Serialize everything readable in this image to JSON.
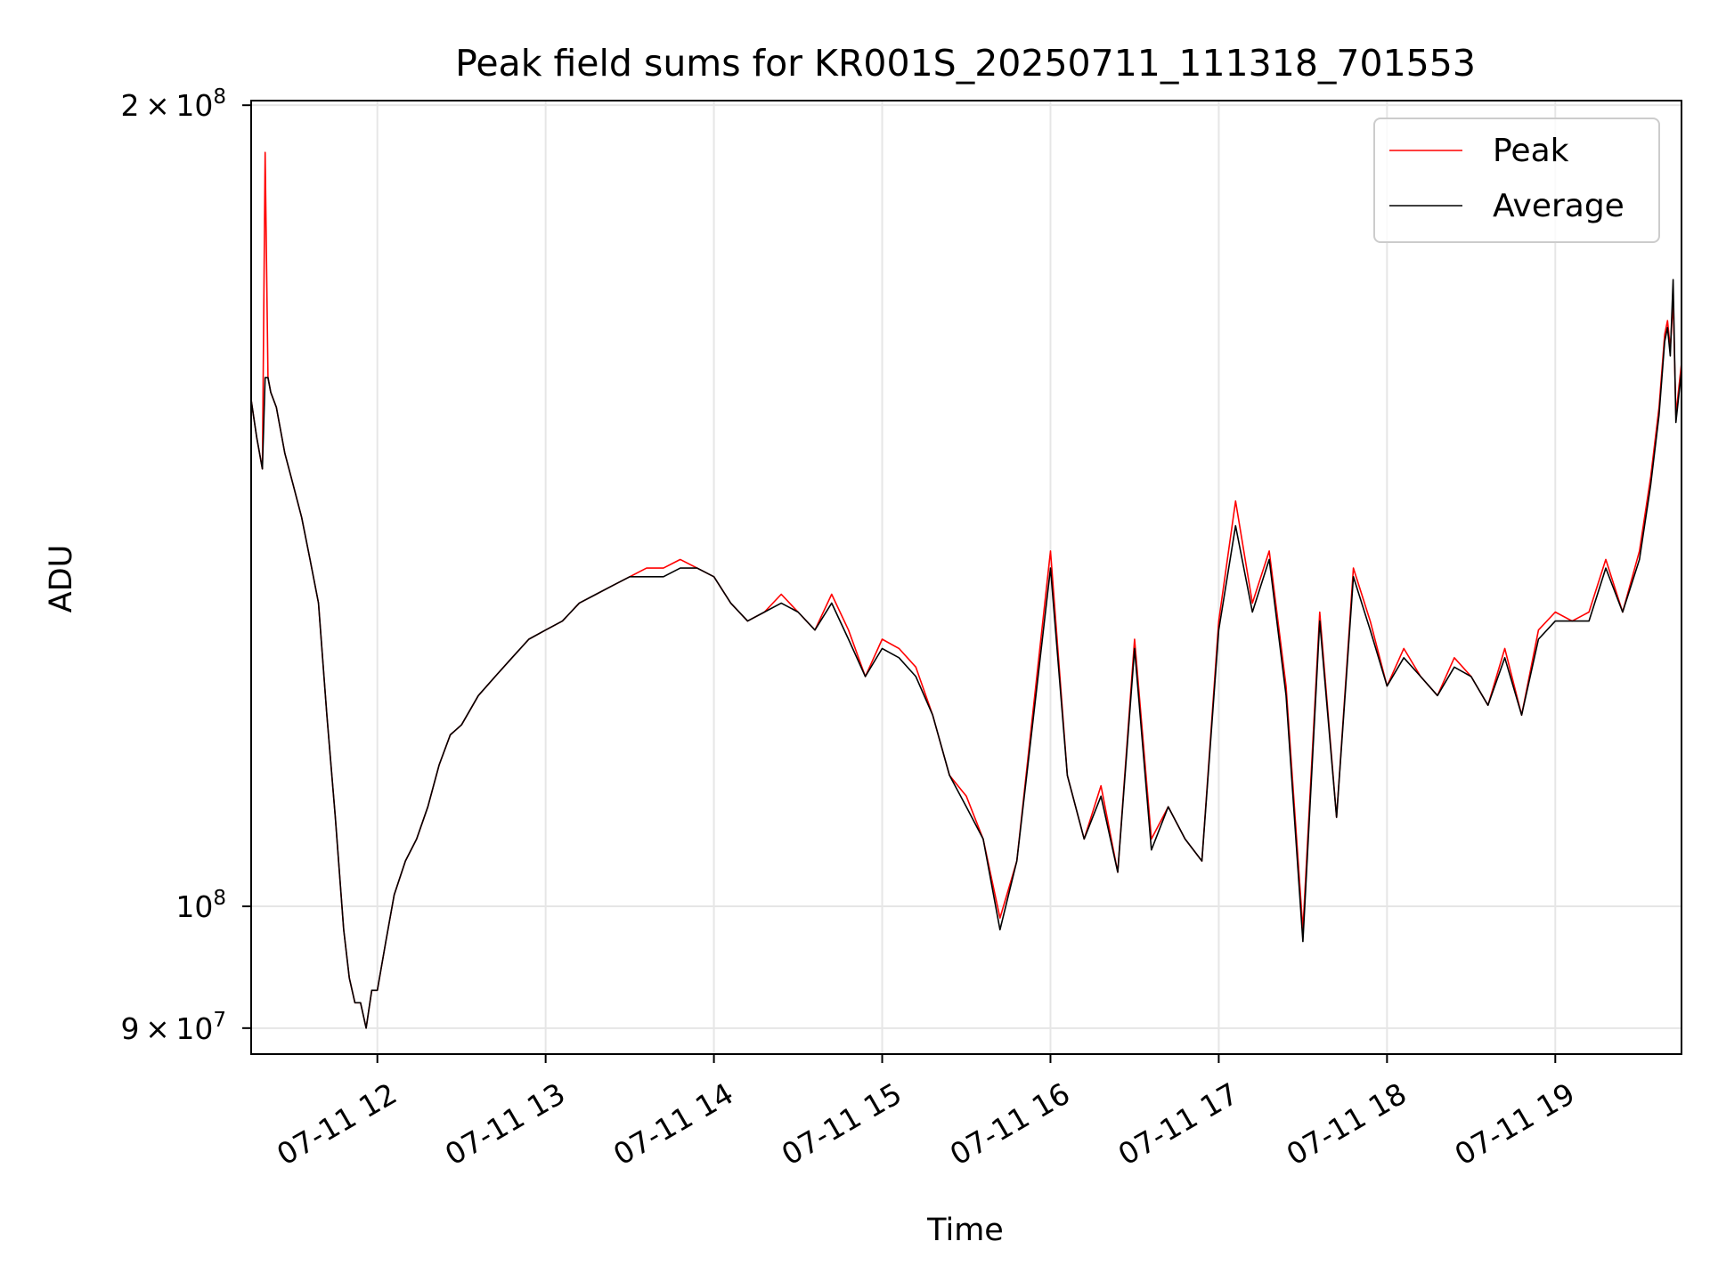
{
  "chart_data": {
    "type": "line",
    "title": "Peak field sums for KR001S_20250711_111318_701553",
    "xlabel": "Time",
    "ylabel": "ADU",
    "x_range": [
      "2025-07-11T11:15",
      "2025-07-11T19:45"
    ],
    "y_range": [
      88000000,
      200800000
    ],
    "y_scale": "log",
    "grid": true,
    "legend_position": "top-right",
    "x_ticks": [
      {
        "value": "2025-07-11T12:00",
        "label": "07-11 12"
      },
      {
        "value": "2025-07-11T13:00",
        "label": "07-11 13"
      },
      {
        "value": "2025-07-11T14:00",
        "label": "07-11 14"
      },
      {
        "value": "2025-07-11T15:00",
        "label": "07-11 15"
      },
      {
        "value": "2025-07-11T16:00",
        "label": "07-11 16"
      },
      {
        "value": "2025-07-11T17:00",
        "label": "07-11 17"
      },
      {
        "value": "2025-07-11T18:00",
        "label": "07-11 18"
      },
      {
        "value": "2025-07-11T19:00",
        "label": "07-11 19"
      }
    ],
    "y_ticks": [
      {
        "value": 90000000,
        "base": "9 × 10",
        "exp": "7"
      },
      {
        "value": 100000000,
        "base": "10",
        "exp": "8"
      },
      {
        "value": 200000000,
        "base": "2 × 10",
        "exp": "8"
      }
    ],
    "series": [
      {
        "name": "Peak",
        "color": "#ff0000"
      },
      {
        "name": "Average",
        "color": "#000000"
      }
    ],
    "x": [
      "2025-07-11T11:15",
      "2025-07-11T11:17",
      "2025-07-11T11:19",
      "2025-07-11T11:20",
      "2025-07-11T11:21",
      "2025-07-11T11:22",
      "2025-07-11T11:24",
      "2025-07-11T11:27",
      "2025-07-11T11:30",
      "2025-07-11T11:33",
      "2025-07-11T11:36",
      "2025-07-11T11:39",
      "2025-07-11T11:42",
      "2025-07-11T11:45",
      "2025-07-11T11:48",
      "2025-07-11T11:50",
      "2025-07-11T11:52",
      "2025-07-11T11:54",
      "2025-07-11T11:56",
      "2025-07-11T11:58",
      "2025-07-11T12:00",
      "2025-07-11T12:03",
      "2025-07-11T12:06",
      "2025-07-11T12:10",
      "2025-07-11T12:14",
      "2025-07-11T12:18",
      "2025-07-11T12:22",
      "2025-07-11T12:26",
      "2025-07-11T12:30",
      "2025-07-11T12:36",
      "2025-07-11T12:42",
      "2025-07-11T12:48",
      "2025-07-11T12:54",
      "2025-07-11T13:00",
      "2025-07-11T13:06",
      "2025-07-11T13:12",
      "2025-07-11T13:18",
      "2025-07-11T13:24",
      "2025-07-11T13:30",
      "2025-07-11T13:36",
      "2025-07-11T13:42",
      "2025-07-11T13:48",
      "2025-07-11T13:54",
      "2025-07-11T14:00",
      "2025-07-11T14:06",
      "2025-07-11T14:12",
      "2025-07-11T14:18",
      "2025-07-11T14:24",
      "2025-07-11T14:30",
      "2025-07-11T14:36",
      "2025-07-11T14:42",
      "2025-07-11T14:48",
      "2025-07-11T14:54",
      "2025-07-11T15:00",
      "2025-07-11T15:06",
      "2025-07-11T15:12",
      "2025-07-11T15:18",
      "2025-07-11T15:24",
      "2025-07-11T15:30",
      "2025-07-11T15:36",
      "2025-07-11T15:42",
      "2025-07-11T15:48",
      "2025-07-11T15:54",
      "2025-07-11T16:00",
      "2025-07-11T16:06",
      "2025-07-11T16:12",
      "2025-07-11T16:18",
      "2025-07-11T16:24",
      "2025-07-11T16:30",
      "2025-07-11T16:36",
      "2025-07-11T16:42",
      "2025-07-11T16:48",
      "2025-07-11T16:54",
      "2025-07-11T17:00",
      "2025-07-11T17:06",
      "2025-07-11T17:12",
      "2025-07-11T17:18",
      "2025-07-11T17:24",
      "2025-07-11T17:30",
      "2025-07-11T17:36",
      "2025-07-11T17:42",
      "2025-07-11T17:48",
      "2025-07-11T17:54",
      "2025-07-11T18:00",
      "2025-07-11T18:06",
      "2025-07-11T18:12",
      "2025-07-11T18:18",
      "2025-07-11T18:24",
      "2025-07-11T18:30",
      "2025-07-11T18:36",
      "2025-07-11T18:42",
      "2025-07-11T18:48",
      "2025-07-11T18:54",
      "2025-07-11T19:00",
      "2025-07-11T19:06",
      "2025-07-11T19:12",
      "2025-07-11T19:18",
      "2025-07-11T19:24",
      "2025-07-11T19:30",
      "2025-07-11T19:34",
      "2025-07-11T19:37",
      "2025-07-11T19:39",
      "2025-07-11T19:40",
      "2025-07-11T19:41",
      "2025-07-11T19:42",
      "2025-07-11T19:43",
      "2025-07-11T19:45"
    ],
    "peak": [
      155000000,
      150000000,
      146000000,
      192000000,
      158000000,
      156000000,
      154000000,
      148000000,
      144000000,
      140000000,
      135000000,
      130000000,
      118000000,
      108000000,
      98000000,
      94000000,
      92000000,
      92000000,
      90000000,
      93000000,
      93000000,
      97000000,
      101000000,
      104000000,
      106000000,
      109000000,
      113000000,
      116000000,
      117000000,
      120000000,
      122000000,
      124000000,
      126000000,
      127000000,
      128000000,
      130000000,
      131000000,
      132000000,
      133000000,
      134000000,
      134000000,
      135000000,
      134000000,
      133000000,
      130000000,
      128000000,
      129000000,
      131000000,
      129000000,
      127000000,
      131000000,
      127000000,
      122000000,
      126000000,
      125000000,
      123000000,
      118000000,
      112000000,
      110000000,
      106000000,
      99000000,
      104000000,
      119000000,
      136000000,
      112000000,
      106000000,
      111000000,
      103000000,
      126000000,
      106000000,
      109000000,
      106000000,
      104000000,
      128000000,
      142000000,
      130000000,
      136000000,
      121000000,
      98000000,
      129000000,
      108000000,
      134000000,
      128000000,
      121000000,
      125000000,
      122000000,
      120000000,
      124000000,
      122000000,
      119000000,
      125000000,
      118000000,
      127000000,
      129000000,
      128000000,
      129000000,
      135000000,
      129000000,
      136000000,
      145000000,
      154000000,
      164000000,
      166000000,
      162000000,
      169000000,
      153000000,
      160000000,
      162000000
    ],
    "average": [
      155000000,
      150000000,
      146000000,
      158000000,
      158000000,
      156000000,
      154000000,
      148000000,
      144000000,
      140000000,
      135000000,
      130000000,
      118000000,
      108000000,
      98000000,
      94000000,
      92000000,
      92000000,
      90000000,
      93000000,
      93000000,
      97000000,
      101000000,
      104000000,
      106000000,
      109000000,
      113000000,
      116000000,
      117000000,
      120000000,
      122000000,
      124000000,
      126000000,
      127000000,
      128000000,
      130000000,
      131000000,
      132000000,
      133000000,
      133000000,
      133000000,
      134000000,
      134000000,
      133000000,
      130000000,
      128000000,
      129000000,
      130000000,
      129000000,
      127000000,
      130000000,
      126000000,
      122000000,
      125000000,
      124000000,
      122000000,
      118000000,
      112000000,
      109000000,
      106000000,
      98000000,
      104000000,
      118000000,
      134000000,
      112000000,
      106000000,
      110000000,
      103000000,
      125000000,
      105000000,
      109000000,
      106000000,
      104000000,
      127000000,
      139000000,
      129000000,
      135000000,
      120000000,
      97000000,
      128000000,
      108000000,
      133000000,
      127000000,
      121000000,
      124000000,
      122000000,
      120000000,
      123000000,
      122000000,
      119000000,
      124000000,
      118000000,
      126000000,
      128000000,
      128000000,
      128000000,
      134000000,
      129000000,
      135000000,
      144000000,
      153000000,
      163000000,
      165000000,
      161000000,
      172000000,
      152000000,
      159000000,
      161000000
    ]
  }
}
